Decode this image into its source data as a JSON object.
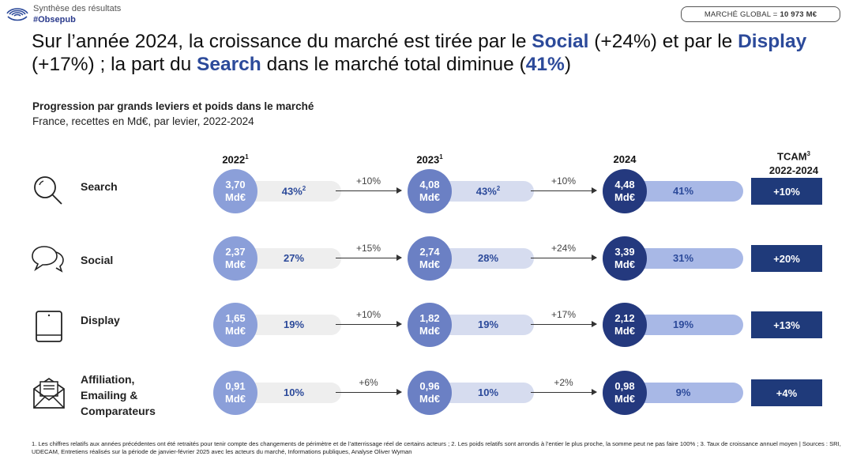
{
  "header": {
    "line1": "Synthèse des résultats",
    "hashtag": "#Obsepub",
    "market_label": "MARCHÉ GLOBAL =",
    "market_value": "10 973 M€"
  },
  "headline": {
    "p1": "Sur l’année 2024, la croissance du marché est tirée par le ",
    "e1": "Social",
    "p2": " (+24%) et par le ",
    "e2": "Display",
    "p3": " (+17%) ; la part du ",
    "e3": "Search",
    "p4": " dans le marché total diminue (",
    "e4": "41%",
    "p5": ")"
  },
  "colors": {
    "accent": "#2c4a9a",
    "tcam_box": "#1f3a7a",
    "circle_2022": "#8b9fd9",
    "circle_2023": "#6b80c4",
    "circle_2024": "#24397e"
  },
  "chart_data": {
    "type": "table",
    "title": "Progression par grands leviers et poids dans le marché",
    "subtitle": "France, recettes en Md€, par levier, 2022-2024",
    "unit": "Md€",
    "years": [
      "2022",
      "2023",
      "2024"
    ],
    "year_sup": [
      "1",
      "1",
      ""
    ],
    "tcam_header": "TCAM",
    "tcam_sup": "3",
    "tcam_period": "2022-2024",
    "rows": [
      {
        "lever": "Search",
        "icon": "search-icon",
        "values": [
          "3,70",
          "4,08",
          "4,48"
        ],
        "shares": [
          "43%",
          "43%",
          "41%"
        ],
        "share_sup": [
          "2",
          "2",
          ""
        ],
        "growth": [
          "+10%",
          "+10%"
        ],
        "tcam": "+10%"
      },
      {
        "lever": "Social",
        "icon": "chat-bubbles-icon",
        "values": [
          "2,37",
          "2,74",
          "3,39"
        ],
        "shares": [
          "27%",
          "28%",
          "31%"
        ],
        "share_sup": [
          "",
          "",
          ""
        ],
        "growth": [
          "+15%",
          "+24%"
        ],
        "tcam": "+20%"
      },
      {
        "lever": "Display",
        "icon": "tablet-icon",
        "values": [
          "1,65",
          "1,82",
          "2,12"
        ],
        "shares": [
          "19%",
          "19%",
          "19%"
        ],
        "share_sup": [
          "",
          "",
          ""
        ],
        "growth": [
          "+10%",
          "+17%"
        ],
        "tcam": "+13%"
      },
      {
        "lever": "Affiliation, Emailing & Comparateurs",
        "lever_lines": [
          "Affiliation,",
          "Emailing &",
          "Comparateurs"
        ],
        "icon": "envelope-icon",
        "values": [
          "0,91",
          "0,96",
          "0,98"
        ],
        "shares": [
          "10%",
          "10%",
          "9%"
        ],
        "share_sup": [
          "",
          "",
          ""
        ],
        "growth": [
          "+6%",
          "+2%"
        ],
        "tcam": "+4%"
      }
    ]
  },
  "footnote": "1. Les chiffres relatifs aux années précédentes ont été retraités pour tenir compte des changements de périmètre et de l’atterrissage réel de certains acteurs ; 2. Les poids relatifs sont arrondis à l’entier le plus proche, la somme peut ne pas faire 100% ; 3. Taux de croissance annuel moyen | Sources : SRI, UDECAM, Entretiens réalisés sur la période de janvier-février 2025 avec les acteurs du marché, Informations publiques, Analyse Oliver Wyman"
}
